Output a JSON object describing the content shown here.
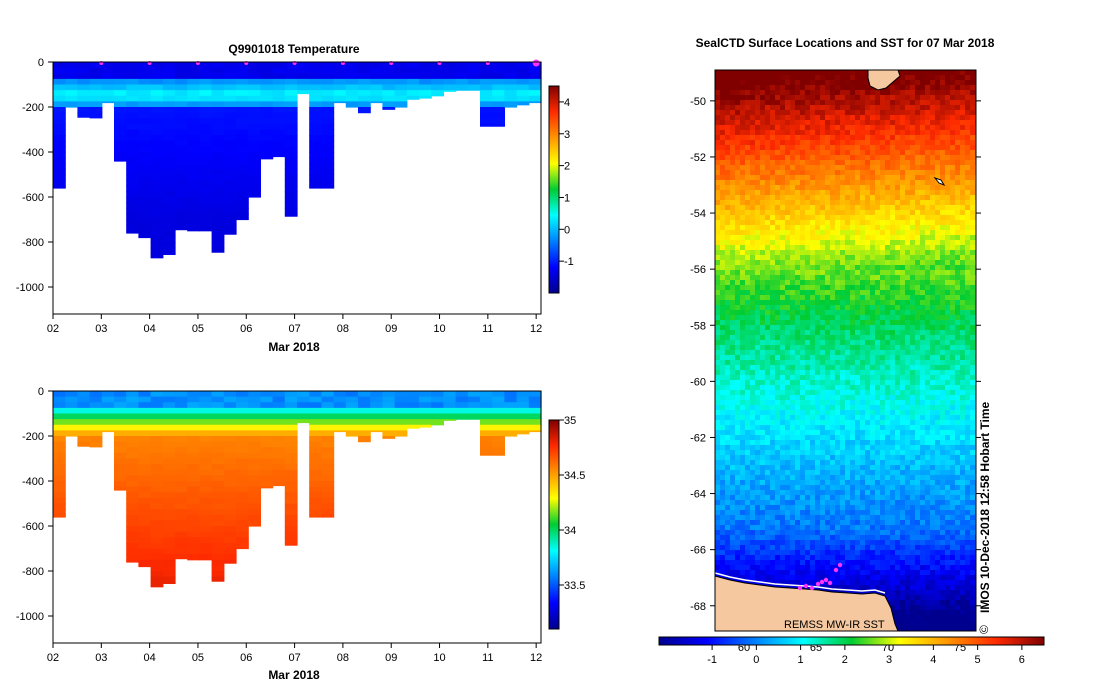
{
  "chart_data": [
    {
      "type": "heatmap",
      "title": "Q9901018  Temperature",
      "xlabel": "Mar 2018",
      "ylabel": "",
      "x_tick_labels": [
        "02",
        "03",
        "04",
        "05",
        "06",
        "07",
        "08",
        "09",
        "10",
        "11",
        "12"
      ],
      "x_range_days": [
        2,
        12.1
      ],
      "y_tick_labels": [
        "0",
        "-200",
        "-400",
        "-600",
        "-800",
        "-1000"
      ],
      "ylim": [
        -1120,
        0
      ],
      "colorbar": {
        "range": [
          -2,
          4.5
        ],
        "tick_labels": [
          "4",
          "3",
          "2",
          "1",
          "0",
          "-1"
        ]
      },
      "profile_max_depths": [
        560,
        200,
        245,
        248,
        180,
        440,
        760,
        780,
        870,
        855,
        745,
        750,
        750,
        845,
        765,
        700,
        600,
        430,
        420,
        685,
        140,
        560,
        560,
        180,
        200,
        225,
        180,
        210,
        200,
        165,
        160,
        150,
        130,
        125,
        125,
        285,
        285,
        200,
        190,
        180
      ],
      "surface_markers_day": [
        3,
        4,
        5,
        6,
        7,
        8,
        9,
        10,
        11,
        12
      ]
    },
    {
      "type": "heatmap",
      "title": "",
      "xlabel": "Mar 2018",
      "ylabel": "",
      "x_tick_labels": [
        "02",
        "03",
        "04",
        "05",
        "06",
        "07",
        "08",
        "09",
        "10",
        "11",
        "12"
      ],
      "x_range_days": [
        2,
        12.1
      ],
      "y_tick_labels": [
        "0",
        "-200",
        "-400",
        "-600",
        "-800",
        "-1000"
      ],
      "ylim": [
        -1120,
        0
      ],
      "colorbar": {
        "range": [
          33.1,
          35.0
        ],
        "tick_labels": [
          "35",
          "34.5",
          "34",
          "33.5"
        ]
      },
      "profile_max_depths": [
        560,
        200,
        245,
        248,
        180,
        440,
        760,
        780,
        870,
        855,
        745,
        750,
        750,
        845,
        765,
        700,
        600,
        430,
        420,
        685,
        140,
        560,
        560,
        180,
        200,
        225,
        180,
        210,
        200,
        165,
        160,
        150,
        130,
        125,
        125,
        285,
        285,
        200,
        190,
        180
      ]
    },
    {
      "type": "heatmap",
      "title": "SealCTD Surface Locations and SST for 07 Mar 2018",
      "xlabel": "",
      "ylabel": "",
      "y_tick_labels": [
        "-50",
        "-52",
        "-54",
        "-56",
        "-58",
        "-60",
        "-62",
        "-64",
        "-66",
        "-68"
      ],
      "ylim": [
        -68.9,
        -48.9
      ],
      "x_tick_labels": [
        "60",
        "65",
        "70",
        "75"
      ],
      "colorbar": {
        "range": [
          -2.2,
          6.5
        ],
        "tick_labels": [
          "-1",
          "0",
          "1",
          "2",
          "3",
          "4",
          "5",
          "6"
        ]
      },
      "side_label": "IMOS 10-Dec-2018 12:58 Hobart Time",
      "copyright": "©",
      "source_label": "REMSS MW-IR SST"
    }
  ],
  "colors": {
    "background": "#ffffff",
    "land": "#f5c8a0",
    "seal_marker": "#ff33ff",
    "ice": "#ffffff"
  }
}
